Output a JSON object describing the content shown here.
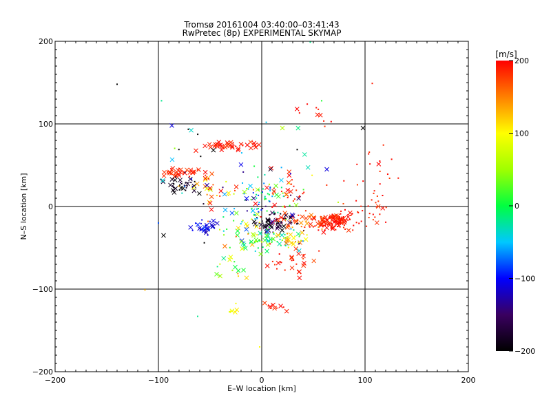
{
  "chart_data": {
    "type": "scatter",
    "title": "Tromsø 20161004 03:40:00–03:41:43",
    "subtitle": "RwPretec (8p) EXPERIMENTAL SKYMAP",
    "xlabel": "E–W location [km]",
    "ylabel": "N–S location [km]",
    "xlim": [
      -200,
      200
    ],
    "ylim": [
      -200,
      200
    ],
    "xticks": [
      -200,
      -100,
      0,
      100,
      200
    ],
    "yticks": [
      -200,
      -100,
      0,
      100,
      200
    ],
    "xtick_labels": [
      "−200",
      "−100",
      "0",
      "100",
      "200"
    ],
    "ytick_labels": [
      "200",
      "100",
      "0",
      "−100",
      "−200"
    ],
    "grid_lines": [
      -100,
      0,
      100
    ],
    "grid": true,
    "colorbar": {
      "label": "[m/s]",
      "range": [
        -200,
        200
      ],
      "ticks": [
        200,
        100,
        0,
        -100,
        -200
      ],
      "tick_labels": [
        "200",
        "100",
        "0",
        "−100",
        "−200"
      ],
      "colormap": [
        "#000000",
        "#3a0060",
        "#0000ff",
        "#00c8ff",
        "#00ff40",
        "#a0ff00",
        "#ffff00",
        "#ff8000",
        "#ff0000"
      ],
      "placement": "right"
    },
    "marker_types": [
      "dot",
      "cross"
    ],
    "clusters": [
      {
        "x": 70,
        "y": -18,
        "sx": 9,
        "sy": 5,
        "n": 120,
        "v": 190,
        "sv": 10,
        "cross": 0.3
      },
      {
        "x": 38,
        "y": -18,
        "sx": 12,
        "sy": 5,
        "n": 45,
        "v": 170,
        "sv": 25,
        "cross": 0.3
      },
      {
        "x": 95,
        "y": -12,
        "sx": 14,
        "sy": 12,
        "n": 30,
        "v": 190,
        "sv": 10,
        "cross": 0.2
      },
      {
        "x": 15,
        "y": -20,
        "sx": 13,
        "sy": 7,
        "n": 55,
        "v": -180,
        "sv": 20,
        "cross": 0.5
      },
      {
        "x": 8,
        "y": -40,
        "sx": 14,
        "sy": 6,
        "n": 60,
        "v": 10,
        "sv": 40,
        "cross": 0.3
      },
      {
        "x": 28,
        "y": -38,
        "sx": 8,
        "sy": 4,
        "n": 20,
        "v": 120,
        "sv": 25,
        "cross": 0.4
      },
      {
        "x": 30,
        "y": -65,
        "sx": 12,
        "sy": 12,
        "n": 28,
        "v": 190,
        "sv": 10,
        "cross": 0.6
      },
      {
        "x": 4,
        "y": 10,
        "sx": 16,
        "sy": 15,
        "n": 70,
        "v": -30,
        "sv": 60,
        "cross": 0.25
      },
      {
        "x": 22,
        "y": 15,
        "sx": 14,
        "sy": 13,
        "n": 35,
        "v": 190,
        "sv": 10,
        "cross": 0.5
      },
      {
        "x": -30,
        "y": 73,
        "sx": 15,
        "sy": 3,
        "n": 38,
        "v": 190,
        "sv": 8,
        "cross": 0.8
      },
      {
        "x": -78,
        "y": 42,
        "sx": 8,
        "sy": 2.5,
        "n": 35,
        "v": 190,
        "sv": 8,
        "cross": 0.6
      },
      {
        "x": -78,
        "y": 26,
        "sx": 9,
        "sy": 5,
        "n": 32,
        "v": -185,
        "sv": 15,
        "cross": 0.5
      },
      {
        "x": -58,
        "y": -26,
        "sx": 6,
        "sy": 5,
        "n": 28,
        "v": -110,
        "sv": 12,
        "cross": 0.5
      },
      {
        "x": -45,
        "y": 20,
        "sx": 14,
        "sy": 10,
        "n": 30,
        "v": 150,
        "sv": 50,
        "cross": 0.5
      },
      {
        "x": -15,
        "y": -30,
        "sx": 12,
        "sy": 12,
        "n": 30,
        "v": 40,
        "sv": 80,
        "cross": 0.4
      },
      {
        "x": -30,
        "y": -70,
        "sx": 8,
        "sy": 12,
        "n": 18,
        "v": 50,
        "sv": 60,
        "cross": 0.6
      },
      {
        "x": 12,
        "y": -120,
        "sx": 6,
        "sy": 6,
        "n": 10,
        "v": 190,
        "sv": 10,
        "cross": 0.7
      },
      {
        "x": -28,
        "y": -128,
        "sx": 4,
        "sy": 6,
        "n": 6,
        "v": 100,
        "sv": 10,
        "cross": 0.7
      },
      {
        "x": 55,
        "y": 110,
        "sx": 14,
        "sy": 8,
        "n": 10,
        "v": 190,
        "sv": 8,
        "cross": 0.1
      },
      {
        "x": 110,
        "y": 40,
        "sx": 12,
        "sy": 20,
        "n": 22,
        "v": 190,
        "sv": 8,
        "cross": 0.2
      },
      {
        "x": -75,
        "y": 60,
        "sx": 14,
        "sy": 25,
        "n": 15,
        "v": -140,
        "sv": 80,
        "cross": 0.4
      },
      {
        "x": 0,
        "y": 20,
        "sx": 40,
        "sy": 40,
        "n": 40,
        "v": 0,
        "sv": 120,
        "cross": 0.2
      }
    ],
    "extra_points": [
      {
        "x": -140,
        "y": 148,
        "v": -200,
        "m": "dot"
      },
      {
        "x": -97,
        "y": 128,
        "v": -20,
        "m": "dot"
      },
      {
        "x": -87,
        "y": 98,
        "v": -110,
        "m": "cross"
      },
      {
        "x": -113,
        "y": -101,
        "v": 130,
        "m": "dot"
      },
      {
        "x": -62,
        "y": -133,
        "v": -20,
        "m": "dot"
      },
      {
        "x": 47,
        "y": 199,
        "v": -20,
        "m": "dot"
      },
      {
        "x": 98,
        "y": 95,
        "v": -200,
        "m": "cross"
      },
      {
        "x": 107,
        "y": 149,
        "v": 190,
        "m": "dot"
      },
      {
        "x": 63,
        "y": 45,
        "v": -110,
        "m": "cross"
      },
      {
        "x": -2,
        "y": -170,
        "v": 100,
        "m": "dot"
      },
      {
        "x": 20,
        "y": 95,
        "v": 60,
        "m": "cross"
      },
      {
        "x": -95,
        "y": -35,
        "v": -200,
        "m": "cross"
      },
      {
        "x": -100,
        "y": -20,
        "v": -80,
        "m": "dot"
      },
      {
        "x": 58,
        "y": 128,
        "v": 10,
        "m": "dot"
      }
    ]
  }
}
